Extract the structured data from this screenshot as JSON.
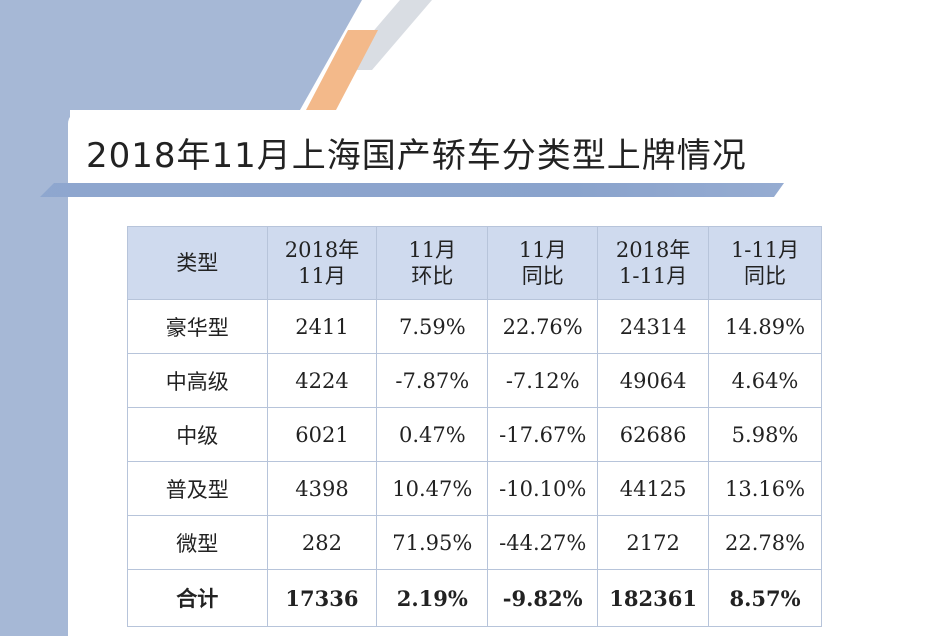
{
  "title": "2018年11月上海国产轿车分类型上牌情况",
  "colors": {
    "accent_blue": "#a6b8d6",
    "accent_orange": "#f3b98a",
    "header_fill": "#cfdaee",
    "border": "#b7c4da"
  },
  "table": {
    "headers": [
      {
        "line1": "类型",
        "line2": ""
      },
      {
        "line1": "2018年",
        "line2": "11月"
      },
      {
        "line1": "11月",
        "line2": "环比"
      },
      {
        "line1": "11月",
        "line2": "同比"
      },
      {
        "line1": "2018年",
        "line2": "1-11月"
      },
      {
        "line1": "1-11月",
        "line2": "同比"
      }
    ],
    "rows": [
      [
        "豪华型",
        "2411",
        "7.59%",
        "22.76%",
        "24314",
        "14.89%"
      ],
      [
        "中高级",
        "4224",
        "-7.87%",
        "-7.12%",
        "49064",
        "4.64%"
      ],
      [
        "中级",
        "6021",
        "0.47%",
        "-17.67%",
        "62686",
        "5.98%"
      ],
      [
        "普及型",
        "4398",
        "10.47%",
        "-10.10%",
        "44125",
        "13.16%"
      ],
      [
        "微型",
        "282",
        "71.95%",
        "-44.27%",
        "2172",
        "22.78%"
      ]
    ],
    "total": [
      "合计",
      "17336",
      "2.19%",
      "-9.82%",
      "182361",
      "8.57%"
    ]
  }
}
